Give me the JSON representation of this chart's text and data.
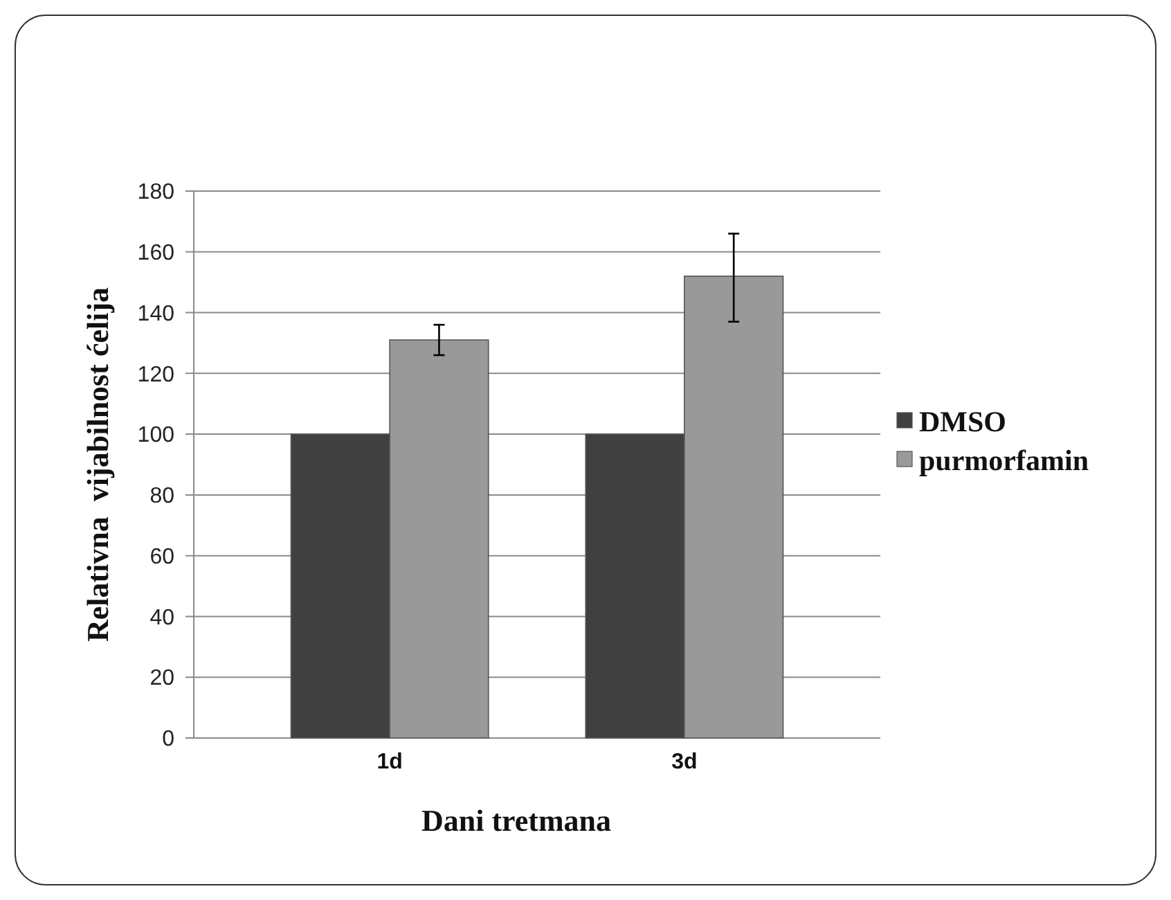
{
  "chart_data": {
    "type": "bar",
    "xlabel": "Dani tretmana",
    "ylabel": "Relativna  vijabilnost ćelija",
    "categories": [
      "1d",
      "3d"
    ],
    "series": [
      {
        "name": "DMSO",
        "color": "#404040",
        "values": [
          100,
          100
        ]
      },
      {
        "name": "purmorfamin",
        "color": "#999999",
        "values": [
          131,
          152
        ],
        "errors": [
          5,
          [
            137,
            166
          ]
        ]
      }
    ],
    "ylim": [
      0,
      180
    ],
    "yticks": [
      0,
      20,
      40,
      60,
      80,
      100,
      120,
      140,
      160,
      180
    ],
    "grid": "y",
    "legend": "right"
  }
}
